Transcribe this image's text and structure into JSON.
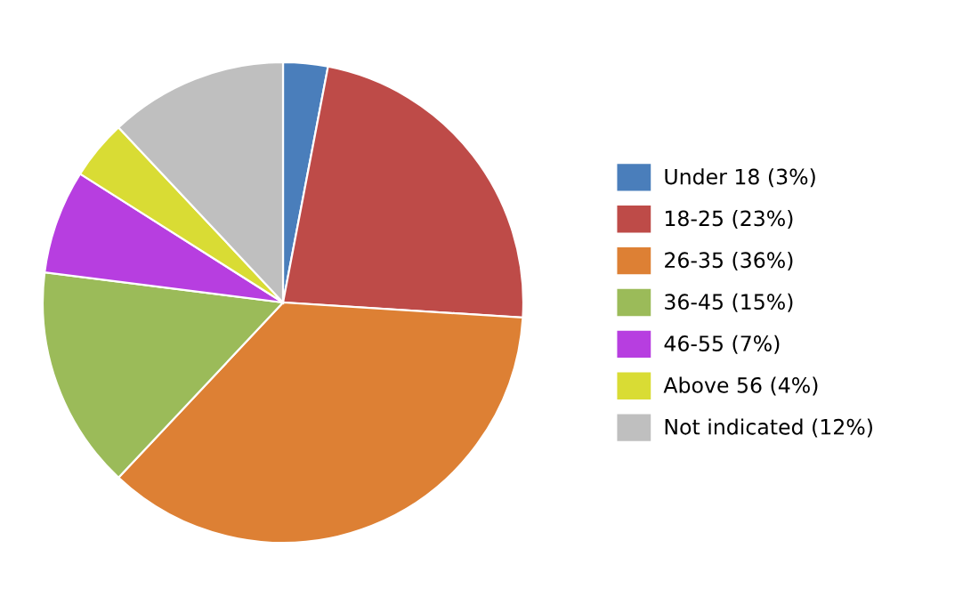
{
  "chart_data": {
    "type": "pie",
    "categories": [
      "Under 18 (3%)",
      "18-25 (23%)",
      "26-35 (36%)",
      "36-45 (15%)",
      "46-55 (7%)",
      "Above 56 (4%)",
      "Not indicated (12%)"
    ],
    "values": [
      3,
      23,
      36,
      15,
      7,
      4,
      12
    ],
    "colors": [
      "#4a7ebb",
      "#be4b48",
      "#dd8034",
      "#9bbb59",
      "#b73ee0",
      "#d9dc34",
      "#bfbfbf"
    ],
    "legend": "right"
  }
}
